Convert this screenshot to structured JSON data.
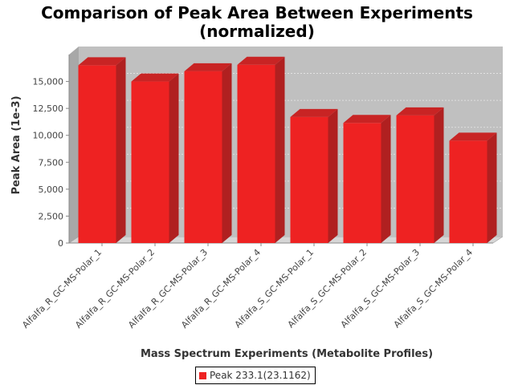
{
  "chart_data": {
    "type": "bar",
    "title_line1": "Comparison of Peak Area Between Experiments",
    "title_line2": "(normalized)",
    "xlabel": "Mass Spectrum Experiments (Metabolite Profiles)",
    "ylabel": "Peak Area (1e-3)",
    "categories": [
      "Alfalfa_R_GC-MS-Polar_1",
      "Alfalfa_R_GC-MS-Polar_2",
      "Alfalfa_R_GC-MS-Polar_3",
      "Alfalfa_R_GC-MS-Polar_4",
      "Alfalfa_S_GC-MS-Polar_1",
      "Alfalfa_S_GC-MS-Polar_2",
      "Alfalfa_S_GC-MS-Polar_3",
      "Alfalfa_S_GC-MS-Polar_4"
    ],
    "series": [
      {
        "name": "Peak 233.1(23.1162)",
        "color": "#ee2222",
        "values": [
          16500,
          15000,
          15950,
          16550,
          11700,
          11150,
          11850,
          9500
        ]
      }
    ],
    "yticks": [
      0,
      2500,
      5000,
      7500,
      10000,
      12500,
      15000
    ],
    "ytick_labels": [
      "0",
      "2,500",
      "5,000",
      "7,500",
      "10,000",
      "12,500",
      "15,000"
    ],
    "ylim": [
      0,
      17500
    ],
    "grid": true,
    "legend_position": "bottom-center"
  }
}
